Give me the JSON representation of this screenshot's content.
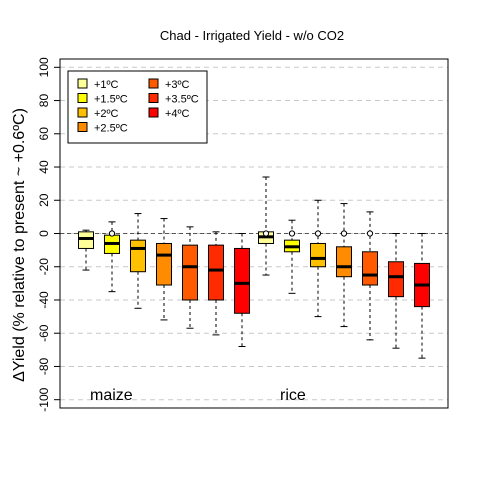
{
  "chart_data": {
    "type": "box",
    "title": "Chad - Irrigated Yield - w/o CO2",
    "ylabel": "ΔYield (% relative to present ~ +0.6ºC)",
    "ylim": [
      -105,
      105
    ],
    "yticks": [
      100,
      80,
      60,
      40,
      20,
      0,
      -20,
      -40,
      -60,
      -80,
      -100
    ],
    "grid": true,
    "legend_position": "top-left",
    "legend": [
      {
        "label": "+1ºC",
        "color": "#ffff99"
      },
      {
        "label": "+1.5ºC",
        "color": "#ffff00"
      },
      {
        "label": "+2ºC",
        "color": "#ffc000"
      },
      {
        "label": "+2.5ºC",
        "color": "#ff8c00"
      },
      {
        "label": "+3ºC",
        "color": "#ff5a00"
      },
      {
        "label": "+3.5ºC",
        "color": "#ff2a00"
      },
      {
        "label": "+4ºC",
        "color": "#ff0000"
      }
    ],
    "groups": [
      {
        "label": "maize",
        "boxes": [
          {
            "q1": -9,
            "median": -3,
            "q3": 1,
            "min": -22,
            "max": 2,
            "color": "#ffff99"
          },
          {
            "q1": -12,
            "median": -6,
            "q3": -1,
            "min": -35,
            "max": 7,
            "color": "#ffff00",
            "outlier": 0
          },
          {
            "q1": -23,
            "median": -9,
            "q3": -4,
            "min": -45,
            "max": 12,
            "color": "#ffc000"
          },
          {
            "q1": -31,
            "median": -13,
            "q3": -6,
            "min": -52,
            "max": 9,
            "color": "#ff8c00"
          },
          {
            "q1": -40,
            "median": -20,
            "q3": -7,
            "min": -57,
            "max": 4,
            "color": "#ff5a00"
          },
          {
            "q1": -40,
            "median": -22,
            "q3": -7,
            "min": -61,
            "max": 1,
            "color": "#ff2a00"
          },
          {
            "q1": -48,
            "median": -30,
            "q3": -9,
            "min": -68,
            "max": 0,
            "color": "#ff0000"
          }
        ]
      },
      {
        "label": "rice",
        "boxes": [
          {
            "q1": -6,
            "median": -2,
            "q3": 1,
            "min": -25,
            "max": 34,
            "color": "#ffff99",
            "outlier": 0
          },
          {
            "q1": -11,
            "median": -8,
            "q3": -4,
            "min": -36,
            "max": 8,
            "color": "#ffff00",
            "outlier": 0
          },
          {
            "q1": -20,
            "median": -15,
            "q3": -6,
            "min": -50,
            "max": 20,
            "color": "#ffc000",
            "outlier": 0
          },
          {
            "q1": -26,
            "median": -20,
            "q3": -8,
            "min": -56,
            "max": 18,
            "color": "#ff8c00",
            "outlier": 0
          },
          {
            "q1": -31,
            "median": -25,
            "q3": -11,
            "min": -64,
            "max": 13,
            "color": "#ff5a00",
            "outlier": 0
          },
          {
            "q1": -38,
            "median": -26,
            "q3": -17,
            "min": -69,
            "max": 0,
            "color": "#ff2a00"
          },
          {
            "q1": -44,
            "median": -31,
            "q3": -18,
            "min": -75,
            "max": 0,
            "color": "#ff0000"
          }
        ]
      }
    ]
  }
}
